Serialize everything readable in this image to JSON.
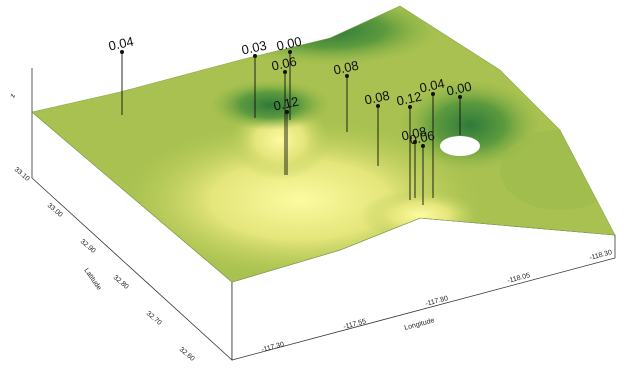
{
  "z_axis": {
    "title": "z"
  },
  "y_axis": {
    "title": "Latitude",
    "ticks": [
      "33.10",
      "33.00",
      "32.90",
      "32.80",
      "32.70",
      "32.60"
    ]
  },
  "x_axis": {
    "title": "Longitude",
    "ticks": [
      "-117.30",
      "-117.55",
      "-117.80",
      "-118.05",
      "-118.30"
    ]
  },
  "posts": [
    "0.04",
    "0.03",
    "0.00",
    "0.06",
    "0.08",
    "0.12",
    "0.08",
    "0.12",
    "0.04",
    "0.00",
    "0.08",
    "0.06"
  ]
}
